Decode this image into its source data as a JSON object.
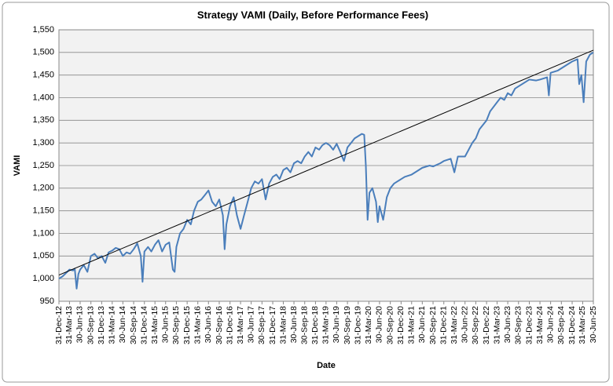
{
  "chart_data": {
    "type": "line",
    "title": "Strategy VAMI (Daily, Before Performance Fees)",
    "x_label": "Date",
    "y_label": "VAMI",
    "xlim": [
      "2012-12-31",
      "2025-06-30"
    ],
    "ylim": [
      950,
      1550
    ],
    "yticks": [
      950,
      {
        "value": 1000,
        "label": "1,000"
      },
      {
        "value": 1050,
        "label": "1,050"
      },
      {
        "value": 1100,
        "label": "1,100"
      },
      {
        "value": 1150,
        "label": "1,150"
      },
      {
        "value": 1200,
        "label": "1,200"
      },
      {
        "value": 1250,
        "label": "1,250"
      },
      {
        "value": 1300,
        "label": "1,300"
      },
      {
        "value": 1350,
        "label": "1,350"
      },
      {
        "value": 1400,
        "label": "1,400"
      },
      {
        "value": 1450,
        "label": "1,450"
      },
      {
        "value": 1500,
        "label": "1,500"
      },
      {
        "value": 1550,
        "label": "1,550"
      }
    ],
    "xticks": [
      {
        "value": "2012-12-31",
        "label": "31-Dec-12"
      },
      {
        "value": "2013-03-31",
        "label": "31-Mar-13"
      },
      {
        "value": "2013-06-30",
        "label": "30-Jun-13"
      },
      {
        "value": "2013-09-30",
        "label": "30-Sep-13"
      },
      {
        "value": "2013-12-31",
        "label": "31-Dec-13"
      },
      {
        "value": "2014-03-31",
        "label": "31-Mar-14"
      },
      {
        "value": "2014-06-30",
        "label": "30-Jun-14"
      },
      {
        "value": "2014-09-30",
        "label": "30-Sep-14"
      },
      {
        "value": "2014-12-31",
        "label": "31-Dec-14"
      },
      {
        "value": "2015-03-31",
        "label": "31-Mar-15"
      },
      {
        "value": "2015-06-30",
        "label": "30-Jun-15"
      },
      {
        "value": "2015-09-30",
        "label": "30-Sep-15"
      },
      {
        "value": "2015-12-31",
        "label": "31-Dec-15"
      },
      {
        "value": "2016-03-31",
        "label": "31-Mar-16"
      },
      {
        "value": "2016-06-30",
        "label": "30-Jun-16"
      },
      {
        "value": "2016-09-30",
        "label": "30-Sep-16"
      },
      {
        "value": "2016-12-31",
        "label": "31-Dec-16"
      },
      {
        "value": "2017-03-31",
        "label": "31-Mar-17"
      },
      {
        "value": "2017-06-30",
        "label": "30-Jun-17"
      },
      {
        "value": "2017-09-30",
        "label": "30-Sep-17"
      },
      {
        "value": "2017-12-31",
        "label": "31-Dec-17"
      },
      {
        "value": "2018-03-31",
        "label": "31-Mar-18"
      },
      {
        "value": "2018-06-30",
        "label": "30-Jun-18"
      },
      {
        "value": "2018-09-30",
        "label": "30-Sep-18"
      },
      {
        "value": "2018-12-31",
        "label": "31-Dec-18"
      },
      {
        "value": "2019-03-31",
        "label": "31-Mar-19"
      },
      {
        "value": "2019-06-30",
        "label": "30-Jun-19"
      },
      {
        "value": "2019-09-30",
        "label": "30-Sep-19"
      },
      {
        "value": "2019-12-31",
        "label": "31-Dec-19"
      },
      {
        "value": "2020-03-31",
        "label": "31-Mar-20"
      },
      {
        "value": "2020-06-30",
        "label": "30-Jun-20"
      },
      {
        "value": "2020-09-30",
        "label": "30-Sep-20"
      },
      {
        "value": "2020-12-31",
        "label": "31-Dec-20"
      },
      {
        "value": "2021-03-31",
        "label": "31-Mar-21"
      },
      {
        "value": "2021-06-30",
        "label": "30-Jun-21"
      },
      {
        "value": "2021-09-30",
        "label": "30-Sep-21"
      },
      {
        "value": "2021-12-31",
        "label": "31-Dec-21"
      },
      {
        "value": "2022-03-31",
        "label": "31-Mar-22"
      },
      {
        "value": "2022-06-30",
        "label": "30-Jun-22"
      },
      {
        "value": "2022-09-30",
        "label": "30-Sep-22"
      },
      {
        "value": "2022-12-31",
        "label": "31-Dec-22"
      },
      {
        "value": "2023-03-31",
        "label": "31-Mar-23"
      },
      {
        "value": "2023-06-30",
        "label": "30-Jun-23"
      },
      {
        "value": "2023-09-30",
        "label": "30-Sep-23"
      },
      {
        "value": "2023-12-31",
        "label": "31-Dec-23"
      },
      {
        "value": "2024-03-31",
        "label": "31-Mar-24"
      },
      {
        "value": "2024-06-30",
        "label": "30-Jun-24"
      },
      {
        "value": "2024-09-30",
        "label": "30-Sep-24"
      },
      {
        "value": "2024-12-31",
        "label": "31-Dec-24"
      },
      {
        "value": "2025-03-31",
        "label": "31-Mar-25"
      },
      {
        "value": "2025-06-30",
        "label": "30-Jun-25"
      }
    ],
    "grid": true,
    "series": [
      {
        "color": "#4a7ebb",
        "x": [
          "2012-12-31",
          "2013-01-31",
          "2013-02-28",
          "2013-03-31",
          "2013-04-30",
          "2013-05-15",
          "2013-05-31",
          "2013-06-15",
          "2013-06-30",
          "2013-07-31",
          "2013-08-31",
          "2013-09-30",
          "2013-10-31",
          "2013-11-30",
          "2013-12-31",
          "2014-01-31",
          "2014-02-28",
          "2014-03-31",
          "2014-04-30",
          "2014-05-31",
          "2014-06-30",
          "2014-07-31",
          "2014-08-31",
          "2014-09-30",
          "2014-10-31",
          "2014-11-30",
          "2014-12-15",
          "2014-12-31",
          "2015-01-31",
          "2015-02-28",
          "2015-03-31",
          "2015-04-30",
          "2015-05-31",
          "2015-06-30",
          "2015-07-31",
          "2015-08-31",
          "2015-09-15",
          "2015-09-30",
          "2015-10-31",
          "2015-11-30",
          "2015-12-31",
          "2016-01-31",
          "2016-02-28",
          "2016-03-31",
          "2016-04-30",
          "2016-05-31",
          "2016-06-30",
          "2016-07-31",
          "2016-08-31",
          "2016-09-30",
          "2016-10-31",
          "2016-11-15",
          "2016-11-30",
          "2016-12-31",
          "2017-01-31",
          "2017-02-28",
          "2017-03-31",
          "2017-04-30",
          "2017-05-31",
          "2017-06-30",
          "2017-07-31",
          "2017-08-31",
          "2017-09-30",
          "2017-10-31",
          "2017-11-30",
          "2017-12-31",
          "2018-01-31",
          "2018-02-28",
          "2018-03-31",
          "2018-04-30",
          "2018-05-31",
          "2018-06-30",
          "2018-07-31",
          "2018-08-31",
          "2018-09-30",
          "2018-10-31",
          "2018-11-30",
          "2018-12-31",
          "2019-01-31",
          "2019-02-28",
          "2019-03-31",
          "2019-04-30",
          "2019-05-31",
          "2019-06-30",
          "2019-07-31",
          "2019-08-31",
          "2019-09-30",
          "2019-10-31",
          "2019-11-30",
          "2019-12-31",
          "2020-01-31",
          "2020-02-20",
          "2020-03-05",
          "2020-03-20",
          "2020-04-05",
          "2020-04-30",
          "2020-05-31",
          "2020-06-15",
          "2020-06-30",
          "2020-07-31",
          "2020-08-31",
          "2020-09-30",
          "2020-10-31",
          "2020-11-30",
          "2020-12-31",
          "2021-01-31",
          "2021-03-31",
          "2021-05-31",
          "2021-06-30",
          "2021-08-31",
          "2021-09-30",
          "2021-11-30",
          "2021-12-31",
          "2022-02-28",
          "2022-03-31",
          "2022-04-30",
          "2022-06-30",
          "2022-08-31",
          "2022-09-30",
          "2022-10-31",
          "2022-12-31",
          "2023-01-31",
          "2023-03-31",
          "2023-04-30",
          "2023-05-31",
          "2023-06-30",
          "2023-07-31",
          "2023-08-31",
          "2023-09-30",
          "2023-10-31",
          "2023-12-31",
          "2024-02-28",
          "2024-03-31",
          "2024-05-31",
          "2024-06-15",
          "2024-06-30",
          "2024-08-31",
          "2024-10-31",
          "2024-12-31",
          "2025-02-15",
          "2025-03-01",
          "2025-03-20",
          "2025-04-08",
          "2025-04-30",
          "2025-05-31",
          "2025-06-30"
        ],
        "values": [
          1000,
          1005,
          1012,
          1020,
          1018,
          1022,
          978,
          1010,
          1020,
          1030,
          1015,
          1050,
          1055,
          1045,
          1050,
          1035,
          1058,
          1062,
          1068,
          1065,
          1050,
          1058,
          1055,
          1065,
          1078,
          1050,
          993,
          1060,
          1070,
          1060,
          1075,
          1085,
          1060,
          1075,
          1080,
          1020,
          1015,
          1070,
          1100,
          1110,
          1130,
          1120,
          1150,
          1170,
          1175,
          1185,
          1195,
          1170,
          1160,
          1175,
          1140,
          1065,
          1120,
          1160,
          1180,
          1140,
          1110,
          1140,
          1170,
          1200,
          1215,
          1210,
          1220,
          1175,
          1210,
          1225,
          1230,
          1220,
          1240,
          1245,
          1235,
          1255,
          1260,
          1255,
          1270,
          1280,
          1270,
          1290,
          1285,
          1295,
          1300,
          1295,
          1285,
          1298,
          1280,
          1260,
          1290,
          1300,
          1310,
          1315,
          1320,
          1318,
          1250,
          1130,
          1190,
          1200,
          1170,
          1125,
          1160,
          1130,
          1180,
          1200,
          1210,
          1215,
          1220,
          1225,
          1230,
          1240,
          1245,
          1250,
          1248,
          1255,
          1260,
          1265,
          1235,
          1270,
          1270,
          1300,
          1310,
          1330,
          1350,
          1370,
          1390,
          1400,
          1395,
          1410,
          1405,
          1420,
          1425,
          1430,
          1440,
          1438,
          1440,
          1445,
          1405,
          1455,
          1460,
          1470,
          1480,
          1485,
          1430,
          1450,
          1390,
          1480,
          1495,
          1500
        ]
      },
      {
        "color": "#000000",
        "x": [
          "2012-12-31",
          "2025-06-30"
        ],
        "values": [
          1008,
          1505
        ]
      }
    ]
  }
}
